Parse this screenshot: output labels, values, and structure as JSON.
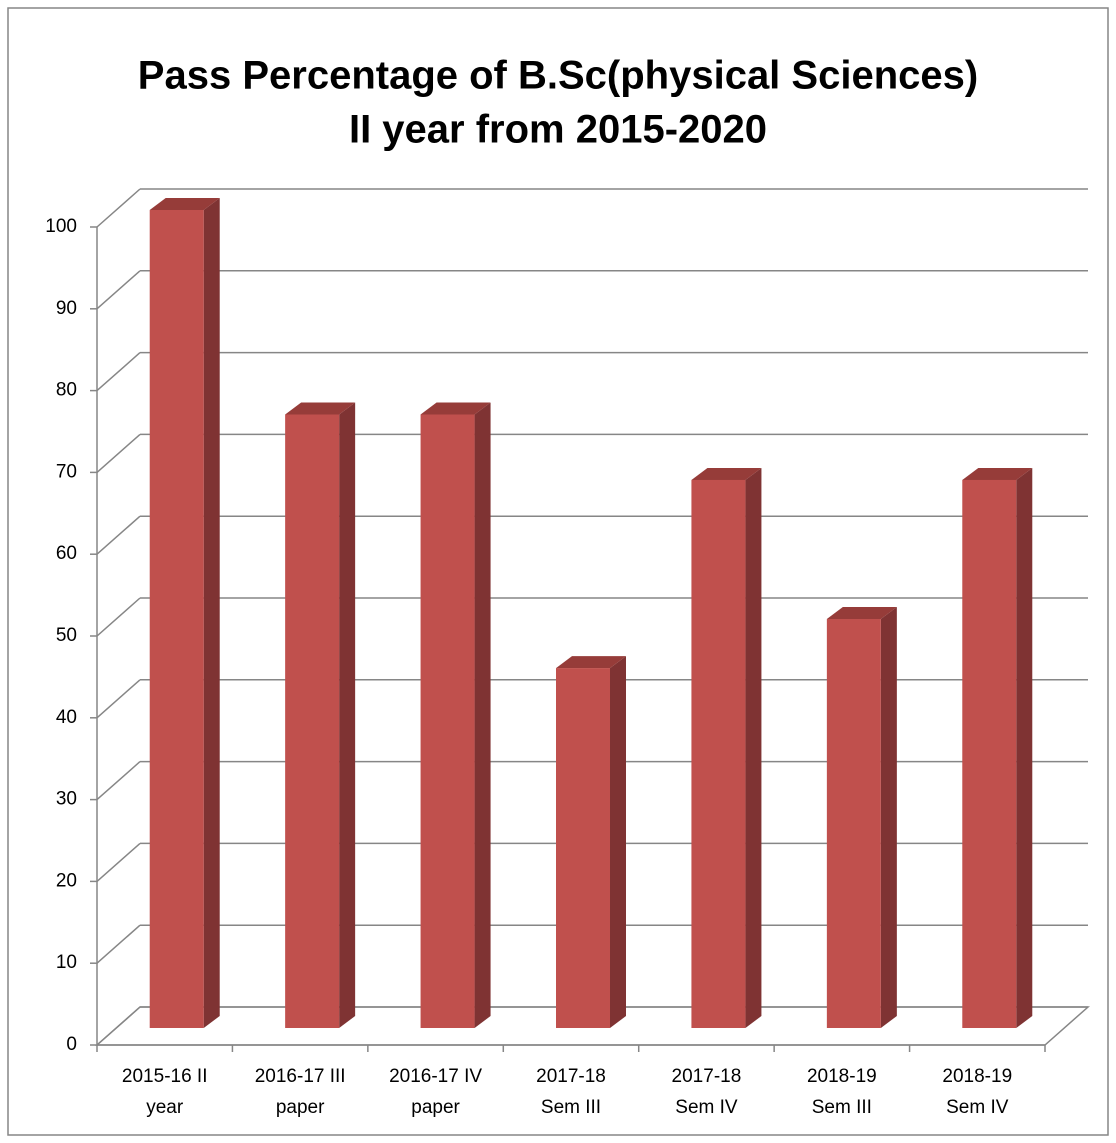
{
  "chart_data": {
    "type": "bar3d",
    "title": [
      "Pass Percentage of B.Sc(physical Sciences)",
      "II year from 2015-2020"
    ],
    "categories": [
      "2015-16 II\nyear",
      "2016-17 III\npaper",
      "2016-17 IV\npaper",
      "2017-18\nSem III",
      "2017-18\nSem IV",
      "2018-19\nSem III",
      "2018-19\nSem IV"
    ],
    "values": [
      100,
      75,
      75,
      44,
      67,
      50,
      67
    ],
    "color": "#c0504d",
    "ylim": [
      0,
      100
    ],
    "yticks": [
      0,
      10,
      20,
      30,
      40,
      50,
      60,
      70,
      80,
      90,
      100
    ],
    "grid": true
  }
}
